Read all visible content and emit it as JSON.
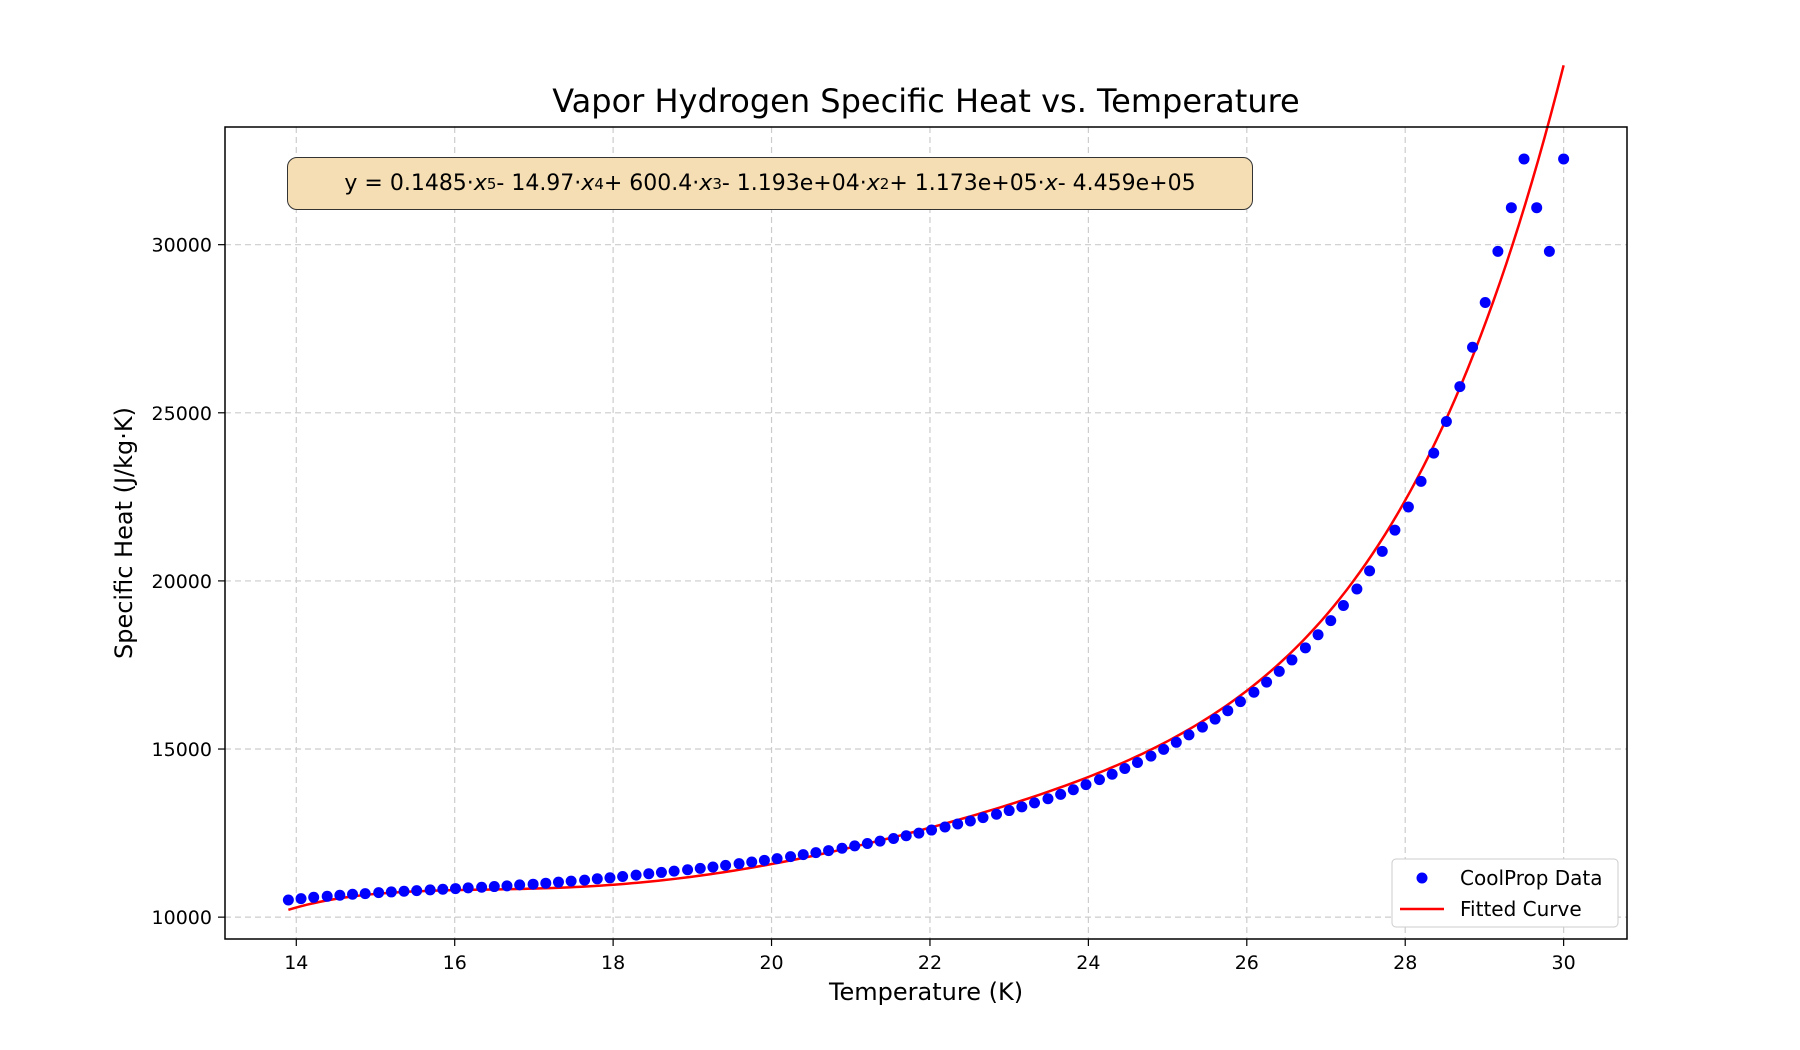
{
  "chart_data": {
    "type": "scatter",
    "title": "Vapor Hydrogen Specific Heat vs. Temperature",
    "xlabel": "Temperature (K)",
    "ylabel": "Specific Heat (J/kg·K)",
    "xlim": [
      13.1,
      30.8
    ],
    "ylim": [
      9350,
      33500
    ],
    "xticks": [
      14,
      16,
      18,
      20,
      22,
      24,
      26,
      28,
      30
    ],
    "yticks": [
      10000,
      15000,
      20000,
      25000,
      30000
    ],
    "grid": true,
    "legend_position": "lower-right",
    "equation": {
      "prefix": "y = 0.1485·",
      "t1": " - 14.97·",
      "t2": " + 600.4·",
      "t3": " - 1.193e+04·",
      "t4": " + 1.173e+05·",
      "t5": " - 4.459e+05",
      "var": "x",
      "p5": "5",
      "p4": "4",
      "p3": "3",
      "p2": "2"
    },
    "series": [
      {
        "name": "CoolProp Data",
        "kind": "scatter",
        "color": "#0000ff",
        "x": [
          13.9,
          14.06,
          14.22,
          14.39,
          14.55,
          14.71,
          14.87,
          15.04,
          15.2,
          15.36,
          15.52,
          15.69,
          15.85,
          16.01,
          16.17,
          16.34,
          16.5,
          16.66,
          16.82,
          16.99,
          17.15,
          17.31,
          17.47,
          17.64,
          17.8,
          17.96,
          18.12,
          18.29,
          18.45,
          18.61,
          18.77,
          18.94,
          19.1,
          19.26,
          19.42,
          19.59,
          19.75,
          19.91,
          20.07,
          20.24,
          20.4,
          20.56,
          20.72,
          20.89,
          21.05,
          21.21,
          21.37,
          21.54,
          21.7,
          21.86,
          22.02,
          22.19,
          22.35,
          22.51,
          22.67,
          22.84,
          23.0,
          23.16,
          23.32,
          23.49,
          23.65,
          23.81,
          23.97,
          24.14,
          24.3,
          24.46,
          24.62,
          24.79,
          24.95,
          25.11,
          25.27,
          25.44,
          25.6,
          25.76,
          25.92,
          26.09,
          26.25,
          26.41,
          26.57,
          26.74,
          26.9,
          27.06,
          27.22,
          27.39,
          27.55,
          27.71,
          27.87,
          28.04,
          28.2,
          28.36,
          28.52,
          28.69,
          28.85,
          29.01,
          29.17,
          29.34,
          29.5,
          29.66,
          29.82,
          30.0
        ],
        "y": [
          10510,
          10550,
          10590,
          10620,
          10650,
          10680,
          10700,
          10730,
          10750,
          10770,
          10790,
          10810,
          10830,
          10850,
          10870,
          10890,
          10910,
          10930,
          10960,
          10980,
          11010,
          11040,
          11070,
          11100,
          11140,
          11170,
          11210,
          11250,
          11290,
          11330,
          11370,
          11410,
          11450,
          11490,
          11540,
          11590,
          11640,
          11690,
          11740,
          11800,
          11860,
          11920,
          11980,
          12050,
          12120,
          12190,
          12260,
          12340,
          12420,
          12500,
          12590,
          12680,
          12770,
          12860,
          12960,
          13060,
          13170,
          13280,
          13400,
          13520,
          13650,
          13790,
          13940,
          14090,
          14250,
          14420,
          14600,
          14790,
          14990,
          15200,
          15420,
          15650,
          15890,
          16140,
          16410,
          16690,
          16990,
          17310,
          17650,
          18010,
          18400,
          18820,
          19270,
          19760,
          20300,
          20880,
          21510,
          22200,
          22960,
          23800,
          24740,
          25780,
          26950,
          28280,
          29800,
          31100,
          32550,
          31100,
          29800,
          32550
        ]
      },
      {
        "name": "Fitted Curve",
        "kind": "line",
        "color": "#ff0000"
      }
    ]
  }
}
